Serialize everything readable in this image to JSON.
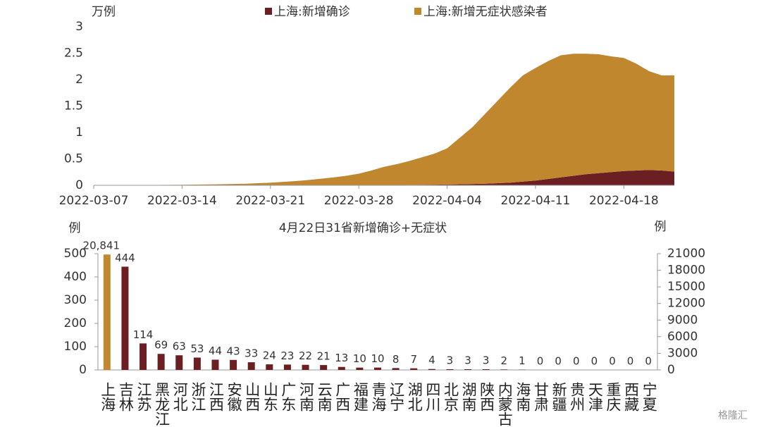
{
  "chart_data": [
    {
      "type": "area",
      "ylabel": "万例",
      "x": [
        "2022-03-07",
        "2022-03-08",
        "2022-03-09",
        "2022-03-10",
        "2022-03-11",
        "2022-03-12",
        "2022-03-13",
        "2022-03-14",
        "2022-03-15",
        "2022-03-16",
        "2022-03-17",
        "2022-03-18",
        "2022-03-19",
        "2022-03-20",
        "2022-03-21",
        "2022-03-22",
        "2022-03-23",
        "2022-03-24",
        "2022-03-25",
        "2022-03-26",
        "2022-03-27",
        "2022-03-28",
        "2022-03-29",
        "2022-03-30",
        "2022-03-31",
        "2022-04-01",
        "2022-04-02",
        "2022-04-03",
        "2022-04-04",
        "2022-04-05",
        "2022-04-06",
        "2022-04-07",
        "2022-04-08",
        "2022-04-09",
        "2022-04-10",
        "2022-04-11",
        "2022-04-12",
        "2022-04-13",
        "2022-04-14",
        "2022-04-15",
        "2022-04-16",
        "2022-04-17",
        "2022-04-18",
        "2022-04-19",
        "2022-04-20",
        "2022-04-21",
        "2022-04-22"
      ],
      "xticks": [
        "2022-03-07",
        "2022-03-14",
        "2022-03-21",
        "2022-03-28",
        "2022-04-04",
        "2022-04-11",
        "2022-04-18"
      ],
      "ylim": [
        0,
        3
      ],
      "yticks": [
        0,
        0.5,
        1,
        1.5,
        2,
        2.5,
        3
      ],
      "series": [
        {
          "name": "上海:新增确诊",
          "color": "#6b1f22",
          "values": [
            0.001,
            0.001,
            0.001,
            0.001,
            0.001,
            0.001,
            0.001,
            0.001,
            0.001,
            0.001,
            0.001,
            0.002,
            0.002,
            0.002,
            0.002,
            0.002,
            0.002,
            0.002,
            0.002,
            0.002,
            0.002,
            0.005,
            0.005,
            0.005,
            0.005,
            0.008,
            0.01,
            0.012,
            0.015,
            0.02,
            0.025,
            0.03,
            0.04,
            0.05,
            0.07,
            0.09,
            0.12,
            0.15,
            0.18,
            0.21,
            0.23,
            0.25,
            0.27,
            0.28,
            0.29,
            0.28,
            0.26
          ]
        },
        {
          "name": "上海:新增无症状感染者",
          "color": "#c0872f",
          "values": [
            0,
            0,
            0.001,
            0.002,
            0.003,
            0.005,
            0.007,
            0.009,
            0.012,
            0.016,
            0.019,
            0.023,
            0.028,
            0.038,
            0.048,
            0.063,
            0.078,
            0.098,
            0.123,
            0.148,
            0.178,
            0.215,
            0.275,
            0.345,
            0.395,
            0.452,
            0.52,
            0.588,
            0.685,
            0.88,
            1.075,
            1.32,
            1.56,
            1.8,
            2.01,
            2.13,
            2.23,
            2.31,
            2.31,
            2.28,
            2.25,
            2.19,
            2.14,
            2.02,
            1.87,
            1.8,
            1.82
          ]
        }
      ]
    },
    {
      "type": "bar",
      "title": "4月22日31省新增确诊+无症状",
      "ylabel": "例",
      "y2label": "例",
      "categories": [
        "上海",
        "吉林",
        "江苏",
        "黑龙江",
        "河北",
        "浙江",
        "江西",
        "安徽",
        "山西",
        "山东",
        "广东",
        "河南",
        "云南",
        "广西",
        "福建",
        "青海",
        "辽宁",
        "湖北",
        "四川",
        "北京",
        "湖南",
        "陕西",
        "内蒙古",
        "海南",
        "甘肃",
        "新疆",
        "贵州",
        "天津",
        "重庆",
        "西藏",
        "宁夏"
      ],
      "ylim": [
        0,
        500
      ],
      "yticks": [
        0,
        100,
        200,
        300,
        400,
        500
      ],
      "y2lim": [
        0,
        21000
      ],
      "y2ticks": [
        0,
        3000,
        6000,
        9000,
        12000,
        15000,
        18000,
        21000
      ],
      "series": [
        {
          "color": "#c0872f",
          "axis": "y2",
          "values": [
            20841,
            null,
            null,
            null,
            null,
            null,
            null,
            null,
            null,
            null,
            null,
            null,
            null,
            null,
            null,
            null,
            null,
            null,
            null,
            null,
            null,
            null,
            null,
            null,
            null,
            null,
            null,
            null,
            null,
            null,
            null
          ],
          "value_labels": [
            "20,841",
            null,
            null,
            null,
            null,
            null,
            null,
            null,
            null,
            null,
            null,
            null,
            null,
            null,
            null,
            null,
            null,
            null,
            null,
            null,
            null,
            null,
            null,
            null,
            null,
            null,
            null,
            null,
            null,
            null,
            null
          ]
        },
        {
          "color": "#6b1f22",
          "values": [
            null,
            444,
            114,
            69,
            63,
            53,
            44,
            43,
            33,
            24,
            23,
            22,
            21,
            13,
            10,
            10,
            8,
            7,
            4,
            3,
            3,
            3,
            2,
            1,
            0,
            0,
            0,
            0,
            0,
            0,
            0
          ]
        }
      ]
    }
  ],
  "watermark": "格隆汇"
}
